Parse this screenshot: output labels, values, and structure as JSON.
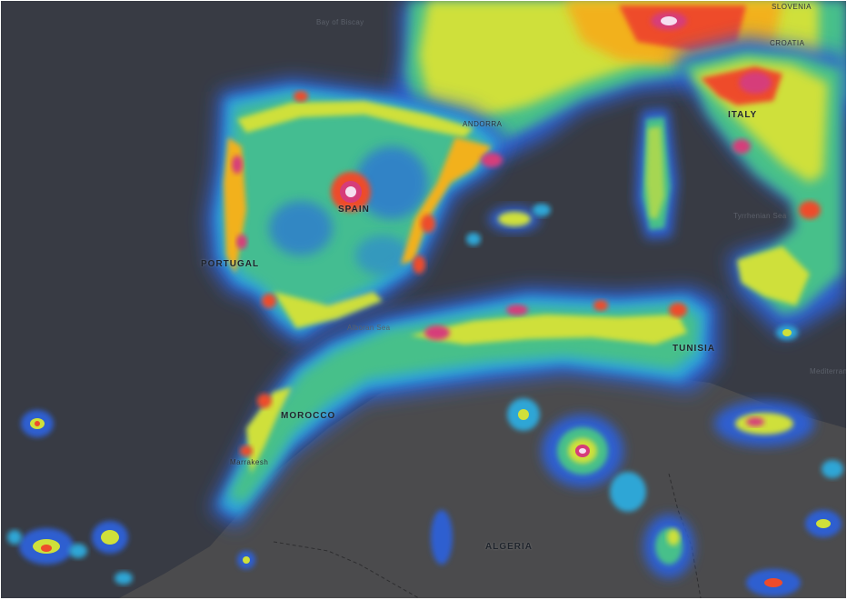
{
  "map": {
    "type": "light-pollution-map",
    "palette": [
      "#2f5fd0",
      "#2fa6d6",
      "#46c08a",
      "#cfe03a",
      "#f2b11f",
      "#ee4b2b",
      "#d63c7a",
      "#f6dff0"
    ],
    "land_color": "#4a4a4c",
    "sea_color": "#383b44",
    "labels": {
      "bay_of_biscay": "Bay of Biscay",
      "spain": "SPAIN",
      "portugal": "PORTUGAL",
      "andorra": "ANDORRA",
      "italy": "ITALY",
      "croatia": "CROATIA",
      "slovenia": "SLOVENIA",
      "morocco": "MOROCCO",
      "tunisia": "TUNISIA",
      "algeria": "ALGERIA",
      "marrakesh": "Marrakesh",
      "tyrrhenian_sea": "Tyrrhenian Sea",
      "alboran_sea": "Alboran Sea",
      "mediterranean": "Mediterranean"
    }
  }
}
